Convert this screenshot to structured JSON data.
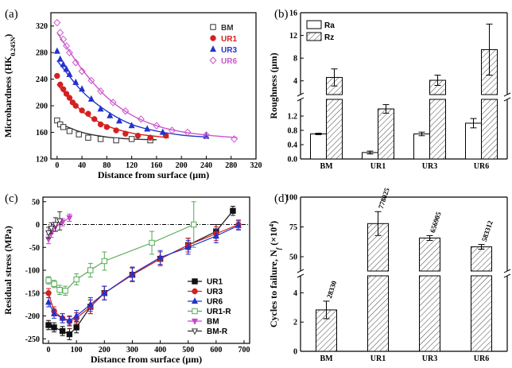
{
  "chart_data": [
    {
      "panel": "(a)",
      "type": "scatter",
      "xlabel": "Distance from surface (μm)",
      "ylabel": "Microhardness (HK",
      "ylabel_sub": "0.245N",
      "ylabel_end": ")",
      "xlim": [
        -10,
        320
      ],
      "ylim": [
        120,
        340
      ],
      "xticks": [
        0,
        40,
        80,
        120,
        160,
        200,
        240,
        280,
        320
      ],
      "yticks": [
        120,
        160,
        200,
        240,
        280,
        320
      ],
      "legend_position": "top-right",
      "series": [
        {
          "name": "BM",
          "color": "#333333",
          "marker": "square-open",
          "x": [
            0,
            5,
            10,
            20,
            35,
            50,
            70,
            95,
            120,
            150
          ],
          "y": [
            178,
            172,
            168,
            162,
            157,
            152,
            150,
            148,
            150,
            148
          ],
          "fit": [
            [
              0,
              175
            ],
            [
              40,
              160
            ],
            [
              80,
              153
            ],
            [
              120,
              150
            ],
            [
              160,
              149
            ]
          ]
        },
        {
          "name": "UR1",
          "color": "#d42020",
          "marker": "circle",
          "x": [
            0,
            5,
            10,
            15,
            20,
            25,
            30,
            40,
            50,
            60,
            70,
            80,
            95,
            110,
            130,
            150,
            175
          ],
          "y": [
            245,
            232,
            225,
            218,
            212,
            205,
            200,
            193,
            188,
            180,
            172,
            168,
            163,
            158,
            155,
            152,
            155
          ],
          "fit": [
            [
              0,
              232
            ],
            [
              40,
              192
            ],
            [
              80,
              170
            ],
            [
              120,
              159
            ],
            [
              160,
              154
            ],
            [
              180,
              152
            ]
          ]
        },
        {
          "name": "UR3",
          "color": "#2233cc",
          "marker": "triangle",
          "x": [
            0,
            5,
            10,
            15,
            20,
            30,
            40,
            55,
            70,
            85,
            100,
            120,
            145,
            170,
            240
          ],
          "y": [
            282,
            270,
            262,
            255,
            247,
            235,
            225,
            210,
            195,
            185,
            177,
            170,
            165,
            160,
            154
          ],
          "fit": [
            [
              0,
              268
            ],
            [
              40,
              222
            ],
            [
              80,
              192
            ],
            [
              120,
              172
            ],
            [
              160,
              162
            ],
            [
              200,
              156
            ],
            [
              240,
              153
            ]
          ]
        },
        {
          "name": "UR6",
          "color": "#cc55cc",
          "marker": "diamond-open",
          "x": [
            0,
            5,
            10,
            15,
            20,
            30,
            40,
            55,
            70,
            90,
            110,
            135,
            160,
            185,
            210,
            240,
            285
          ],
          "y": [
            325,
            310,
            300,
            290,
            280,
            265,
            252,
            238,
            222,
            205,
            192,
            180,
            170,
            163,
            160,
            156,
            150
          ],
          "fit": [
            [
              0,
              310
            ],
            [
              40,
              255
            ],
            [
              80,
              213
            ],
            [
              120,
              186
            ],
            [
              160,
              170
            ],
            [
              200,
              161
            ],
            [
              240,
              156
            ],
            [
              290,
              152
            ]
          ]
        }
      ]
    },
    {
      "panel": "(b)",
      "type": "bar",
      "ylabel": "Roughness (μm)",
      "categories": [
        "BM",
        "UR1",
        "UR3",
        "UR6"
      ],
      "legend_position": "top-left",
      "upper_axis": {
        "range": [
          2,
          16
        ],
        "ticks": [
          4,
          8,
          12,
          16
        ]
      },
      "lower_axis": {
        "range": [
          0,
          1.6
        ],
        "ticks": [
          0.0,
          0.4,
          0.8,
          1.2
        ]
      },
      "series": [
        {
          "name": "Ra",
          "fill": "open",
          "values": [
            0.7,
            0.18,
            0.7,
            1.0
          ],
          "errors": [
            0.02,
            0.04,
            0.05,
            0.13
          ]
        },
        {
          "name": "Rz",
          "fill": "hatched",
          "values": [
            4.6,
            1.4,
            4.1,
            9.5
          ],
          "errors": [
            1.5,
            0.12,
            0.9,
            4.5
          ]
        }
      ]
    },
    {
      "panel": "(c)",
      "type": "line",
      "xlabel": "Distance from surface (μm)",
      "ylabel": "Residual stress (MPa)",
      "xlim": [
        -20,
        720
      ],
      "ylim": [
        -260,
        60
      ],
      "xticks": [
        0,
        100,
        200,
        300,
        400,
        500,
        600,
        700
      ],
      "yticks": [
        -250,
        -200,
        -150,
        -100,
        -50,
        0,
        50
      ],
      "zero_line": true,
      "legend_position": "bottom-right",
      "series": [
        {
          "name": "UR1",
          "color": "#111111",
          "marker": "square",
          "x": [
            0,
            20,
            50,
            75,
            100,
            150,
            200,
            300,
            400,
            500,
            600,
            660
          ],
          "y": [
            -220,
            -225,
            -233,
            -240,
            -225,
            -180,
            -150,
            -110,
            -75,
            -45,
            -15,
            30
          ],
          "err": [
            10,
            10,
            10,
            12,
            12,
            15,
            15,
            15,
            15,
            15,
            15,
            10
          ]
        },
        {
          "name": "UR3",
          "color": "#d42020",
          "marker": "circle",
          "x": [
            0,
            20,
            50,
            75,
            100,
            150,
            200,
            300,
            400,
            500,
            600,
            680
          ],
          "y": [
            -150,
            -190,
            -205,
            -212,
            -205,
            -180,
            -150,
            -110,
            -75,
            -45,
            -20,
            0
          ],
          "err": [
            10,
            10,
            10,
            10,
            12,
            15,
            15,
            15,
            15,
            15,
            15,
            10
          ]
        },
        {
          "name": "UR6",
          "color": "#2233cc",
          "marker": "triangle",
          "x": [
            0,
            20,
            50,
            75,
            100,
            150,
            200,
            300,
            400,
            500,
            600,
            680
          ],
          "y": [
            -170,
            -195,
            -205,
            -210,
            -200,
            -175,
            -150,
            -108,
            -72,
            -50,
            -25,
            -2
          ],
          "err": [
            10,
            10,
            10,
            10,
            12,
            15,
            15,
            15,
            15,
            15,
            15,
            10
          ]
        },
        {
          "name": "UR1-R",
          "color": "#55aa55",
          "marker": "square-open",
          "x": [
            0,
            20,
            40,
            60,
            100,
            150,
            200,
            370,
            520
          ],
          "y": [
            -122,
            -130,
            -143,
            -145,
            -120,
            -100,
            -80,
            -40,
            0
          ],
          "err": [
            8,
            8,
            10,
            10,
            12,
            15,
            20,
            25,
            50
          ]
        },
        {
          "name": "BM",
          "color": "#cc44cc",
          "marker": "triangle-down",
          "x": [
            0,
            10,
            25,
            50,
            75
          ],
          "y": [
            -32,
            -18,
            -5,
            5,
            15
          ],
          "err": [
            10,
            10,
            10,
            8,
            8
          ]
        },
        {
          "name": "BM-R",
          "color": "#333333",
          "marker": "triangle-down-open",
          "x": [
            0,
            10,
            25,
            40
          ],
          "y": [
            -18,
            -8,
            0,
            8
          ],
          "err": [
            12,
            12,
            15,
            20
          ]
        }
      ]
    },
    {
      "panel": "(d)",
      "type": "bar",
      "ylabel": "Cycles to failure, N",
      "ylabel_sub": "f",
      "ylabel_end": " (×10",
      "ylabel_exp": "4",
      "ylabel_close": ")",
      "categories": [
        "BM",
        "UR1",
        "UR3",
        "UR6"
      ],
      "upper_axis": {
        "range": [
          40,
          100
        ],
        "ticks": [
          50,
          75,
          100
        ]
      },
      "lower_axis": {
        "range": [
          0,
          5
        ],
        "ticks": [
          0,
          2,
          4
        ]
      },
      "series": [
        {
          "name": "Cycles to failure",
          "fill": "hatched",
          "values": [
            2.83,
            77.8,
            65.7,
            58.3
          ],
          "errors": [
            0.6,
            10,
            2,
            2
          ]
        }
      ],
      "annotations": [
        "28330",
        "778025",
        "656905",
        "583312"
      ]
    }
  ]
}
